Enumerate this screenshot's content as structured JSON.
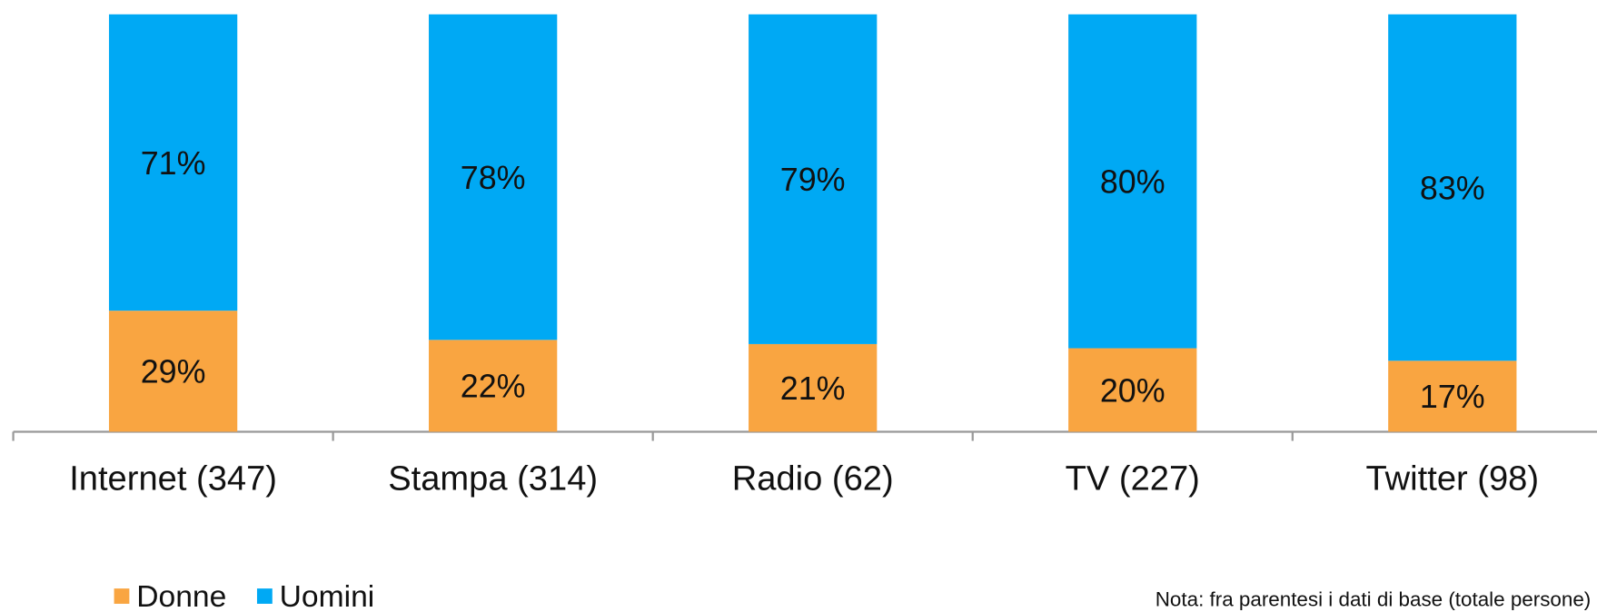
{
  "chart_data": {
    "type": "stacked_bar",
    "categories": [
      "Internet (347)",
      "Stampa (314)",
      "Radio (62)",
      "TV (227)",
      "Twitter (98)"
    ],
    "series": [
      {
        "name": "Donne",
        "color": "#f9a541",
        "values": [
          29,
          22,
          21,
          20,
          17
        ],
        "value_labels": [
          "29%",
          "22%",
          "21%",
          "20%",
          "17%"
        ]
      },
      {
        "name": "Uomini",
        "color": "#00a9f4",
        "values": [
          71,
          78,
          79,
          80,
          83
        ],
        "value_labels": [
          "71%",
          "78%",
          "79%",
          "80%",
          "83%"
        ]
      }
    ],
    "ylim": [
      0,
      100
    ],
    "legend": "bottom-left",
    "note": "Nota: fra parentesi i dati di base (totale persone)"
  }
}
